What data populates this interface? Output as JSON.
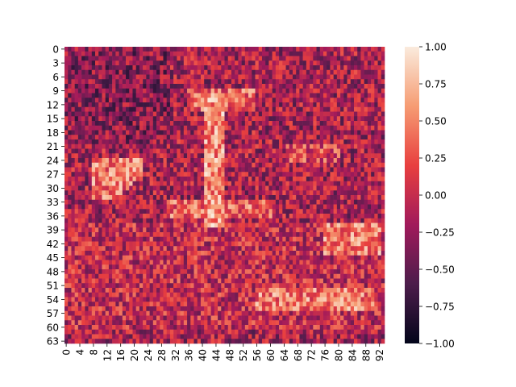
{
  "chart_data": {
    "type": "heatmap",
    "title": "",
    "xlabel": "",
    "ylabel": "",
    "n_rows": 64,
    "n_cols": 94,
    "row_tick_labels": [
      "0",
      "3",
      "6",
      "9",
      "12",
      "15",
      "18",
      "21",
      "24",
      "27",
      "30",
      "33",
      "36",
      "39",
      "42",
      "45",
      "48",
      "51",
      "54",
      "57",
      "60",
      "63"
    ],
    "col_tick_labels": [
      "0",
      "4",
      "8",
      "12",
      "16",
      "20",
      "24",
      "28",
      "32",
      "36",
      "40",
      "44",
      "48",
      "52",
      "56",
      "60",
      "64",
      "68",
      "72",
      "76",
      "80",
      "84",
      "88",
      "92"
    ],
    "colorbar": {
      "vmin": -1.0,
      "vmax": 1.0,
      "tick_labels": [
        "1.00",
        "0.75",
        "0.50",
        "0.25",
        "0.00",
        "−0.25",
        "−0.50",
        "−0.75",
        "−1.00"
      ],
      "colormap": "rocket",
      "color_stops": [
        "#03051a",
        "#4c1d4b",
        "#a11a5b",
        "#e83f3f",
        "#f69c73",
        "#faebdd"
      ]
    },
    "pattern_description_values": "Noisy grayscale-like image of an aircraft encoded as values in [-1,1]; bright wings/fuselage around rows 8-40, bright band near rows 52-56."
  }
}
